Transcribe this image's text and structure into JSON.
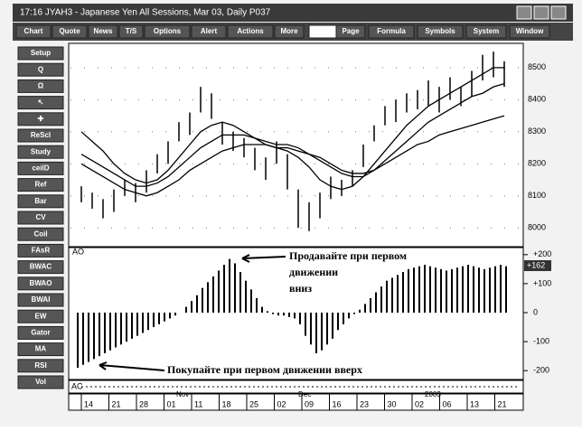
{
  "window": {
    "title": "17:16  JYAH3 - Japanese Yen All Sessions, Mar 03, Daily  P037"
  },
  "toolbar": {
    "left": [
      "Chart",
      "Quote",
      "News",
      "T/S",
      "Options",
      "Alert",
      "Actions",
      "More"
    ],
    "right": [
      "Page",
      "Formula",
      "Symbols",
      "System",
      "Window"
    ]
  },
  "sidebar": [
    "Setup",
    "Q",
    "Ω",
    "↖",
    "✚",
    "ReScl",
    "Study",
    "ceilD",
    "Ref",
    "Bar",
    "CV",
    "Coil",
    "FAsR",
    "BWAC",
    "BWAO",
    "BWAI",
    "EW",
    "Gator",
    "MA",
    "RSI",
    "Vol"
  ],
  "chart": {
    "price": {
      "ylim": [
        7950,
        8570
      ],
      "yticks": [
        8000,
        8100,
        8200,
        8300,
        8400,
        8500
      ],
      "grid": true,
      "bars": [
        [
          8130,
          8080
        ],
        [
          8110,
          8060
        ],
        [
          8090,
          8030
        ],
        [
          8120,
          8050
        ],
        [
          8150,
          8100
        ],
        [
          8140,
          8080
        ],
        [
          8180,
          8110
        ],
        [
          8230,
          8170
        ],
        [
          8270,
          8200
        ],
        [
          8330,
          8270
        ],
        [
          8360,
          8290
        ],
        [
          8440,
          8360
        ],
        [
          8420,
          8340
        ],
        [
          8330,
          8260
        ],
        [
          8300,
          8240
        ],
        [
          8280,
          8220
        ],
        [
          8250,
          8180
        ],
        [
          8220,
          8150
        ],
        [
          8270,
          8200
        ],
        [
          8230,
          8120
        ],
        [
          8120,
          8000
        ],
        [
          8080,
          7990
        ],
        [
          8110,
          8030
        ],
        [
          8160,
          8090
        ],
        [
          8150,
          8100
        ],
        [
          8180,
          8130
        ],
        [
          8260,
          8190
        ],
        [
          8320,
          8270
        ],
        [
          8380,
          8320
        ],
        [
          8400,
          8330
        ],
        [
          8420,
          8360
        ],
        [
          8430,
          8370
        ],
        [
          8460,
          8380
        ],
        [
          8440,
          8360
        ],
        [
          8470,
          8400
        ],
        [
          8440,
          8380
        ],
        [
          8490,
          8410
        ],
        [
          8540,
          8460
        ],
        [
          8550,
          8470
        ],
        [
          8520,
          8440
        ]
      ],
      "averages": [
        [
          8300,
          8270,
          8240,
          8200,
          8170,
          8150,
          8140,
          8150,
          8180,
          8220,
          8260,
          8300,
          8320,
          8330,
          8320,
          8300,
          8280,
          8260,
          8250,
          8240,
          8220,
          8190,
          8150,
          8130,
          8120,
          8130,
          8160,
          8200,
          8240,
          8280,
          8320,
          8350,
          8380,
          8400,
          8420,
          8440,
          8460,
          8480,
          8500,
          8500
        ],
        [
          8230,
          8210,
          8190,
          8170,
          8150,
          8130,
          8130,
          8140,
          8160,
          8190,
          8220,
          8250,
          8270,
          8290,
          8290,
          8290,
          8280,
          8270,
          8260,
          8260,
          8250,
          8230,
          8210,
          8190,
          8170,
          8160,
          8160,
          8180,
          8210,
          8240,
          8270,
          8300,
          8330,
          8350,
          8370,
          8390,
          8410,
          8420,
          8440,
          8450
        ],
        [
          8200,
          8180,
          8160,
          8140,
          8120,
          8110,
          8100,
          8110,
          8130,
          8150,
          8180,
          8200,
          8220,
          8240,
          8250,
          8260,
          8260,
          8260,
          8250,
          8250,
          8240,
          8230,
          8220,
          8200,
          8180,
          8170,
          8170,
          8180,
          8200,
          8220,
          8240,
          8260,
          8270,
          8290,
          8300,
          8310,
          8320,
          8330,
          8340,
          8350
        ]
      ]
    },
    "oscillator": {
      "name": "AO",
      "ylim": [
        -215,
        215
      ],
      "yticks": [
        {
          "value": 200,
          "label": "+200"
        },
        {
          "value": 100,
          "label": "+100"
        },
        0,
        -100,
        -200
      ],
      "current": {
        "value": 162,
        "label": "+162"
      },
      "values": [
        -190,
        -180,
        -170,
        -160,
        -150,
        -140,
        -130,
        -120,
        -110,
        -100,
        -90,
        -80,
        -70,
        -60,
        -50,
        -40,
        -30,
        -20,
        -10,
        0,
        20,
        40,
        60,
        85,
        105,
        125,
        145,
        165,
        185,
        170,
        140,
        110,
        80,
        50,
        20,
        5,
        -5,
        -10,
        -10,
        -15,
        -20,
        -40,
        -80,
        -110,
        -140,
        -130,
        -110,
        -90,
        -60,
        -40,
        -20,
        -5,
        10,
        30,
        50,
        70,
        90,
        110,
        120,
        130,
        140,
        150,
        155,
        160,
        165,
        160,
        155,
        150,
        145,
        150,
        155,
        160,
        165,
        160,
        155,
        150,
        155,
        160,
        165,
        160
      ]
    },
    "annotations": [
      "Продавайте при первом",
      "движении",
      "вниз",
      "Покупайте при первом движении вверх"
    ],
    "lower_panel": "AC",
    "dates": [
      "14",
      "21",
      "28",
      "01",
      "11",
      "18",
      "25",
      "02",
      "09",
      "16",
      "23",
      "30",
      "02",
      "06",
      "13",
      "21"
    ],
    "months": [
      "Nov",
      "Dec",
      "2003"
    ]
  }
}
